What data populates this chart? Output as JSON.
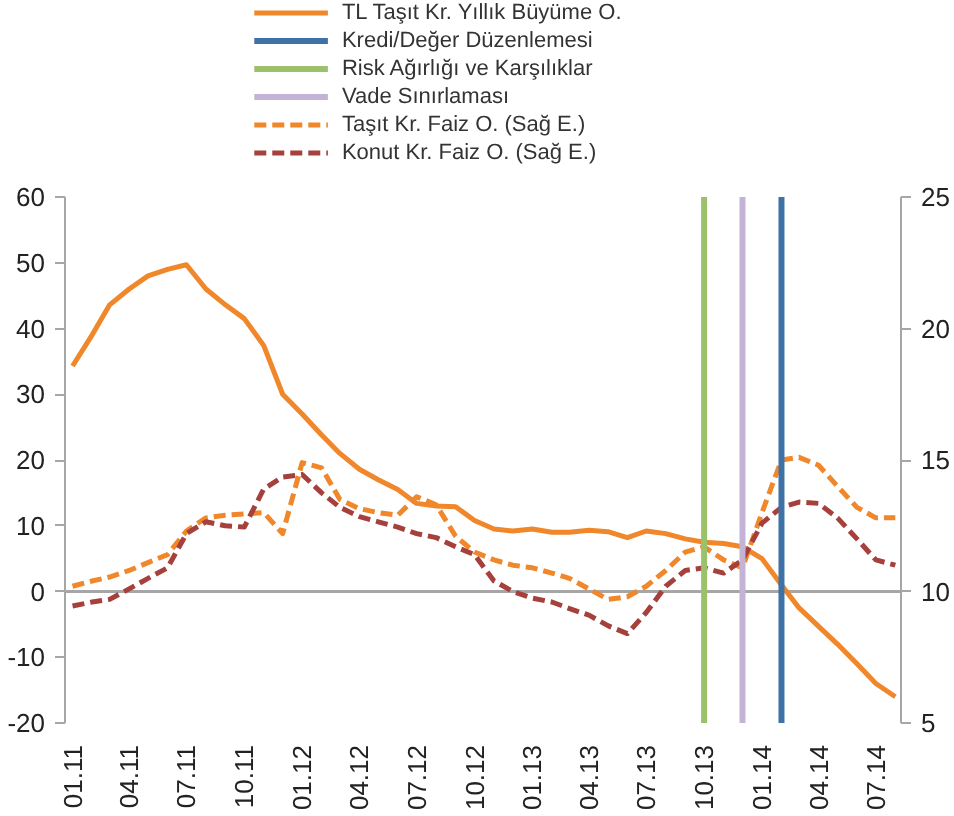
{
  "chart_data": {
    "type": "line",
    "x": [
      "2011-01",
      "2011-02",
      "2011-03",
      "2011-04",
      "2011-05",
      "2011-06",
      "2011-07",
      "2011-08",
      "2011-09",
      "2011-10",
      "2011-11",
      "2011-12",
      "2012-01",
      "2012-02",
      "2012-03",
      "2012-04",
      "2012-05",
      "2012-06",
      "2012-07",
      "2012-08",
      "2012-09",
      "2012-10",
      "2012-11",
      "2012-12",
      "2013-01",
      "2013-02",
      "2013-03",
      "2013-04",
      "2013-05",
      "2013-06",
      "2013-07",
      "2013-08",
      "2013-09",
      "2013-10",
      "2013-11",
      "2013-12",
      "2014-01",
      "2014-02",
      "2014-03",
      "2014-04",
      "2014-05",
      "2014-06",
      "2014-07",
      "2014-08"
    ],
    "series": [
      {
        "name": "TL Taşıt Kr. Yıllık Büyüme O.",
        "color": "#f0872a",
        "line_style": "solid",
        "values": [
          34.3,
          39,
          43.6,
          46,
          48,
          49,
          49.7,
          46,
          43.6,
          41.5,
          37.4,
          30,
          27,
          23.8,
          21,
          18.6,
          17,
          15.5,
          13.4,
          13,
          12.9,
          10.8,
          9.5,
          9.2,
          9.5,
          9,
          9,
          9.3,
          9.1,
          8.2,
          9.2,
          8.8,
          8,
          7.5,
          7.3,
          6.8,
          5,
          1,
          -2.5,
          -5.3,
          -8,
          -11,
          -14,
          -16
        ]
      },
      {
        "name": "Taşıt Kr. Faiz O. (Sağ E.)",
        "color": "#f0872a",
        "line_style": "dashed",
        "axis": "y2",
        "values": [
          10.2,
          10.4,
          10.55,
          10.8,
          11.1,
          11.4,
          12.3,
          12.8,
          12.9,
          12.95,
          13,
          12.2,
          14.9,
          14.7,
          13.5,
          13.15,
          13,
          12.9,
          13.6,
          13.3,
          12.1,
          11.5,
          11.2,
          11,
          10.9,
          10.7,
          10.5,
          10.1,
          9.7,
          9.8,
          10.2,
          10.8,
          11.5,
          11.7,
          11.2,
          10.9,
          13,
          15,
          15.1,
          14.8,
          14,
          13.2,
          12.8,
          12.8
        ]
      },
      {
        "name": "Konut Kr. Faiz O. (Sağ E.)",
        "color": "#a5403c",
        "line_style": "dashed",
        "axis": "y2",
        "values": [
          9.45,
          9.6,
          9.7,
          10.1,
          10.5,
          10.9,
          12.2,
          12.65,
          12.5,
          12.45,
          13.9,
          14.35,
          14.45,
          13.75,
          13.2,
          12.85,
          12.65,
          12.45,
          12.2,
          12.05,
          11.7,
          11.4,
          10.4,
          10,
          9.75,
          9.6,
          9.35,
          9.1,
          8.7,
          8.4,
          9.2,
          10.2,
          10.8,
          10.9,
          10.7,
          11.2,
          12.6,
          13.2,
          13.4,
          13.35,
          12.8,
          12,
          11.2,
          11
        ]
      }
    ],
    "ref_lines": [
      {
        "axis": "y",
        "value": 0,
        "label": null,
        "color": "#a6a6a6",
        "line_style": "solid"
      },
      {
        "axis": "x",
        "value": "2014-02",
        "label": "Kredi/Değer Düzenlemesi",
        "color": "#3e72a6",
        "line_style": "solid"
      },
      {
        "axis": "x",
        "value": "2013-10",
        "label": "Risk Ağırlığı ve Karşılıklar",
        "color": "#9bc26b",
        "line_style": "solid"
      },
      {
        "axis": "x",
        "value": "2013-12",
        "label": "Vade Sınırlaması",
        "color": "#c3b3d6",
        "line_style": "solid"
      }
    ],
    "xlim": [
      "2010-12-20",
      "2014-08-10"
    ],
    "xticks": [
      {
        "value": "2011-01",
        "label": "01.11"
      },
      {
        "value": "2011-04",
        "label": "04.11"
      },
      {
        "value": "2011-07",
        "label": "07.11"
      },
      {
        "value": "2011-10",
        "label": "10.11"
      },
      {
        "value": "2012-01",
        "label": "01.12"
      },
      {
        "value": "2012-04",
        "label": "04.12"
      },
      {
        "value": "2012-07",
        "label": "07.12"
      },
      {
        "value": "2012-10",
        "label": "10.12"
      },
      {
        "value": "2013-01",
        "label": "01.13"
      },
      {
        "value": "2013-04",
        "label": "04.13"
      },
      {
        "value": "2013-07",
        "label": "07.13"
      },
      {
        "value": "2013-10",
        "label": "10.13"
      },
      {
        "value": "2014-01",
        "label": "01.14"
      },
      {
        "value": "2014-04",
        "label": "04.14"
      },
      {
        "value": "2014-07",
        "label": "07.14"
      }
    ],
    "ylim": [
      -20,
      60
    ],
    "yticks": [
      -20,
      -10,
      0,
      10,
      20,
      30,
      40,
      50,
      60
    ],
    "y2lim": [
      5,
      25
    ],
    "y2ticks": [
      5,
      10,
      15,
      20,
      25
    ],
    "grid": false,
    "legend": "top",
    "marker": "none"
  }
}
